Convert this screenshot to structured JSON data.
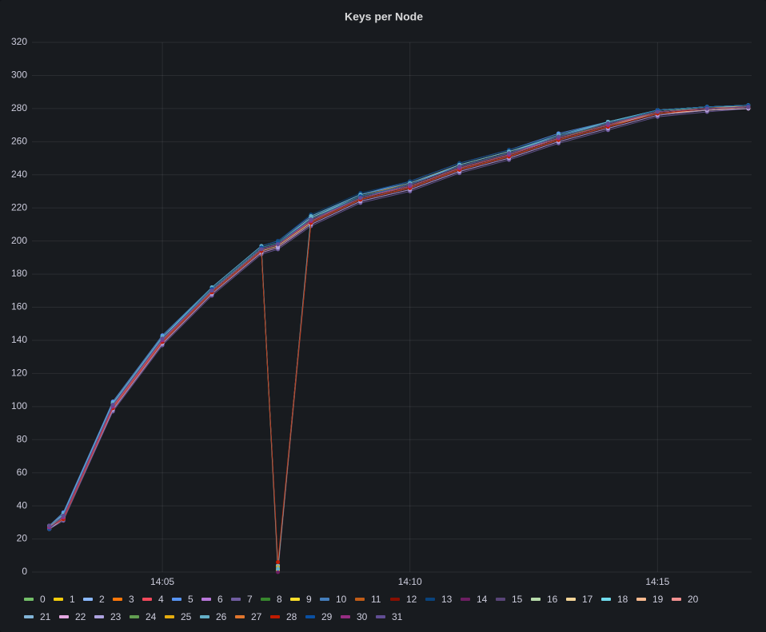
{
  "chart_data": {
    "type": "line",
    "title": "Keys per Node",
    "x": [
      "14:02:43",
      "14:03:00",
      "14:04:00",
      "14:05:00",
      "14:06:00",
      "14:07:00",
      "14:07:20",
      "14:08:00",
      "14:09:00",
      "14:10:00",
      "14:11:00",
      "14:12:00",
      "14:13:00",
      "14:14:00",
      "14:15:00",
      "14:16:00",
      "14:16:50"
    ],
    "xlim": [
      "14:02:22",
      "14:16:54"
    ],
    "xticks": [
      {
        "value": "14:05:00",
        "label": "14:05"
      },
      {
        "value": "14:10:00",
        "label": "14:10"
      },
      {
        "value": "14:15:00",
        "label": "14:15"
      }
    ],
    "ylim": [
      0,
      320
    ],
    "yticks": [
      0,
      20,
      40,
      60,
      80,
      100,
      120,
      140,
      160,
      180,
      200,
      220,
      240,
      260,
      280,
      300,
      320
    ],
    "grid": true,
    "points": true,
    "legend": "bottom",
    "series": [
      {
        "name": "0",
        "color": "#73bf69",
        "values": [
          27,
          34,
          101,
          141,
          171,
          196,
          199,
          213,
          227,
          234,
          245,
          253,
          263,
          271,
          279,
          280,
          281
        ]
      },
      {
        "name": "1",
        "color": "#f2cc0c",
        "values": [
          28,
          33,
          99,
          139,
          169,
          194,
          197,
          211,
          225,
          232,
          243,
          251,
          261,
          269,
          278,
          280,
          281
        ]
      },
      {
        "name": "2",
        "color": "#8ab8ff",
        "values": [
          27,
          35,
          102,
          142,
          170,
          195,
          198,
          212,
          226,
          233,
          244,
          252,
          262,
          270,
          277,
          279,
          281
        ]
      },
      {
        "name": "3",
        "color": "#ff780a",
        "values": [
          26,
          32,
          100,
          140,
          171,
          196,
          199,
          214,
          227,
          235,
          246,
          254,
          263,
          271,
          278,
          280,
          282
        ]
      },
      {
        "name": "4",
        "color": "#f2495c",
        "values": [
          27,
          33,
          98,
          138,
          168,
          193,
          196,
          210,
          224,
          231,
          242,
          250,
          260,
          268,
          276,
          279,
          280
        ]
      },
      {
        "name": "5",
        "color": "#5794f2",
        "values": [
          28,
          36,
          103,
          143,
          172,
          197,
          200,
          215,
          228,
          236,
          247,
          255,
          265,
          272,
          279,
          281,
          282
        ]
      },
      {
        "name": "6",
        "color": "#b877d9",
        "values": [
          27,
          33,
          100,
          141,
          170,
          195,
          198,
          213,
          226,
          234,
          245,
          253,
          262,
          270,
          278,
          280,
          281
        ]
      },
      {
        "name": "7",
        "color": "#705da0",
        "values": [
          26,
          31,
          97,
          137,
          167,
          192,
          195,
          209,
          223,
          230,
          241,
          249,
          259,
          267,
          275,
          278,
          280
        ]
      },
      {
        "name": "8",
        "color": "#37872d",
        "values": [
          27,
          34,
          101,
          140,
          170,
          196,
          199,
          212,
          226,
          233,
          244,
          252,
          262,
          271,
          278,
          280,
          281
        ]
      },
      {
        "name": "9",
        "color": "#fade2a",
        "values": [
          28,
          33,
          100,
          140,
          170,
          195,
          1,
          212,
          226,
          233,
          244,
          252,
          262,
          270,
          278,
          280,
          281
        ]
      },
      {
        "name": "10",
        "color": "#447ebc",
        "values": [
          27,
          34,
          102,
          141,
          171,
          196,
          199,
          214,
          228,
          235,
          245,
          253,
          264,
          271,
          279,
          281,
          282
        ]
      },
      {
        "name": "11",
        "color": "#c15c17",
        "values": [
          26,
          32,
          99,
          139,
          169,
          194,
          197,
          211,
          225,
          232,
          243,
          251,
          261,
          269,
          277,
          279,
          281
        ]
      },
      {
        "name": "12",
        "color": "#890f02",
        "values": [
          27,
          33,
          100,
          140,
          170,
          195,
          198,
          212,
          226,
          233,
          244,
          252,
          262,
          270,
          278,
          280,
          281
        ]
      },
      {
        "name": "13",
        "color": "#0a437c",
        "values": [
          27,
          35,
          101,
          142,
          172,
          197,
          200,
          216,
          229,
          236,
          247,
          255,
          264,
          272,
          279,
          281,
          282
        ]
      },
      {
        "name": "14",
        "color": "#6d1f62",
        "values": [
          26,
          33,
          100,
          140,
          170,
          195,
          0,
          211,
          225,
          232,
          243,
          251,
          261,
          269,
          277,
          280,
          281
        ]
      },
      {
        "name": "15",
        "color": "#584477",
        "values": [
          27,
          32,
          98,
          139,
          169,
          194,
          197,
          210,
          224,
          231,
          242,
          250,
          260,
          268,
          276,
          279,
          280
        ]
      },
      {
        "name": "16",
        "color": "#b7dbab",
        "values": [
          28,
          34,
          101,
          141,
          171,
          196,
          199,
          213,
          227,
          234,
          245,
          253,
          263,
          271,
          279,
          281,
          281
        ]
      },
      {
        "name": "17",
        "color": "#f4d598",
        "values": [
          27,
          33,
          100,
          140,
          170,
          195,
          198,
          212,
          226,
          233,
          244,
          252,
          262,
          270,
          278,
          280,
          281
        ]
      },
      {
        "name": "18",
        "color": "#70dbed",
        "values": [
          27,
          35,
          102,
          142,
          171,
          196,
          199,
          214,
          227,
          234,
          246,
          254,
          263,
          272,
          279,
          281,
          282
        ]
      },
      {
        "name": "19",
        "color": "#f9ba8f",
        "values": [
          26,
          32,
          99,
          139,
          169,
          194,
          197,
          211,
          225,
          232,
          243,
          251,
          261,
          269,
          277,
          279,
          280
        ]
      },
      {
        "name": "20",
        "color": "#f29191",
        "values": [
          27,
          33,
          100,
          140,
          170,
          195,
          198,
          212,
          226,
          233,
          244,
          252,
          262,
          270,
          278,
          280,
          281
        ]
      },
      {
        "name": "21",
        "color": "#82b5d8",
        "values": [
          28,
          34,
          101,
          141,
          171,
          196,
          4,
          213,
          227,
          234,
          245,
          253,
          263,
          271,
          279,
          281,
          282
        ]
      },
      {
        "name": "22",
        "color": "#e5a8e2",
        "values": [
          27,
          33,
          99,
          140,
          170,
          195,
          198,
          212,
          226,
          233,
          244,
          252,
          262,
          270,
          278,
          280,
          281
        ]
      },
      {
        "name": "23",
        "color": "#aea2e0",
        "values": [
          26,
          32,
          98,
          138,
          168,
          193,
          196,
          210,
          224,
          231,
          242,
          250,
          260,
          268,
          276,
          279,
          280
        ]
      },
      {
        "name": "24",
        "color": "#629e51",
        "values": [
          27,
          34,
          101,
          141,
          171,
          196,
          199,
          213,
          227,
          234,
          245,
          253,
          263,
          271,
          279,
          281,
          282
        ]
      },
      {
        "name": "25",
        "color": "#e5ac0e",
        "values": [
          27,
          33,
          100,
          140,
          170,
          195,
          3,
          212,
          226,
          233,
          244,
          252,
          262,
          270,
          278,
          280,
          281
        ]
      },
      {
        "name": "26",
        "color": "#64b0c8",
        "values": [
          28,
          35,
          102,
          142,
          172,
          197,
          2,
          215,
          228,
          235,
          246,
          254,
          264,
          272,
          279,
          281,
          282
        ]
      },
      {
        "name": "27",
        "color": "#e0752d",
        "values": [
          27,
          33,
          100,
          140,
          170,
          195,
          198,
          212,
          226,
          233,
          244,
          252,
          262,
          270,
          278,
          280,
          281
        ]
      },
      {
        "name": "28",
        "color": "#bf1b00",
        "values": [
          27,
          32,
          99,
          139,
          169,
          194,
          6,
          211,
          225,
          232,
          243,
          251,
          261,
          269,
          277,
          280,
          281
        ]
      },
      {
        "name": "29",
        "color": "#0a50a1",
        "values": [
          26,
          34,
          101,
          141,
          171,
          196,
          199,
          213,
          227,
          234,
          245,
          253,
          263,
          271,
          279,
          281,
          282
        ]
      },
      {
        "name": "30",
        "color": "#962d82",
        "values": [
          27,
          33,
          100,
          140,
          170,
          195,
          198,
          212,
          226,
          233,
          244,
          252,
          262,
          270,
          278,
          280,
          281
        ]
      },
      {
        "name": "31",
        "color": "#614d93",
        "values": [
          28,
          34,
          101,
          141,
          170,
          195,
          198,
          213,
          226,
          234,
          245,
          253,
          263,
          271,
          278,
          280,
          281
        ]
      }
    ]
  }
}
